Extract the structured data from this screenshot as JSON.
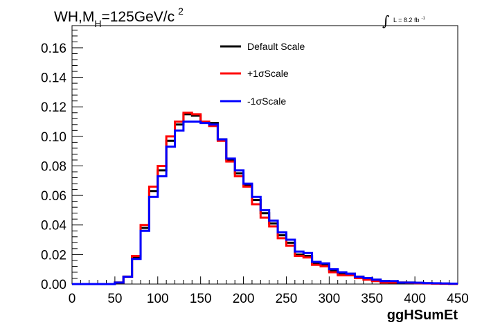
{
  "chart_data": {
    "type": "step",
    "title_main": "WH,M",
    "title_sub": "H",
    "title_rest": "=125GeV/c",
    "title_sup": "2",
    "lumi_integral_sign": "∫",
    "lumi_text": "L = 8.2 fb",
    "lumi_sup": "-1",
    "xlabel": "ggHSumEt",
    "ylabel": "",
    "xlim": [
      0,
      450
    ],
    "ylim": [
      0,
      0.175
    ],
    "xticks": [
      "0",
      "50",
      "100",
      "150",
      "200",
      "250",
      "300",
      "350",
      "400",
      "450"
    ],
    "yticks": [
      "0.00",
      "0.02",
      "0.04",
      "0.06",
      "0.08",
      "0.10",
      "0.12",
      "0.14",
      "0.16"
    ],
    "legend_position": "top-center",
    "bin_width": 10,
    "bin_edges": [
      0,
      450
    ],
    "series": [
      {
        "name": "Default Scale",
        "color": "#000000",
        "values": [
          0,
          0,
          0,
          0,
          0,
          0.001,
          0.005,
          0.018,
          0.038,
          0.063,
          0.077,
          0.097,
          0.108,
          0.115,
          0.114,
          0.11,
          0.109,
          0.098,
          0.084,
          0.075,
          0.067,
          0.057,
          0.048,
          0.041,
          0.033,
          0.028,
          0.02,
          0.019,
          0.014,
          0.013,
          0.009,
          0.007,
          0.007,
          0.005,
          0.004,
          0.003,
          0.002,
          0.001,
          0.001,
          0.001,
          0.0008,
          0.0005,
          0.0004,
          0.0003,
          0.0002
        ]
      },
      {
        "name": "+1σScale",
        "color": "#ff0000",
        "values": [
          0,
          0,
          0,
          0,
          0,
          0.001,
          0.005,
          0.019,
          0.04,
          0.066,
          0.08,
          0.1,
          0.11,
          0.116,
          0.115,
          0.11,
          0.107,
          0.097,
          0.083,
          0.073,
          0.066,
          0.054,
          0.045,
          0.039,
          0.031,
          0.026,
          0.019,
          0.018,
          0.013,
          0.012,
          0.008,
          0.006,
          0.006,
          0.004,
          0.003,
          0.002,
          0.001,
          0.001,
          0.001,
          0.0008,
          0.0006,
          0.0004,
          0.0003,
          0.0002,
          0.0001
        ]
      },
      {
        "name": "-1σScale",
        "color": "#0000ff",
        "values": [
          0,
          0,
          0,
          0,
          0,
          0.001,
          0.005,
          0.017,
          0.036,
          0.059,
          0.073,
          0.093,
          0.104,
          0.11,
          0.11,
          0.109,
          0.108,
          0.098,
          0.085,
          0.077,
          0.068,
          0.059,
          0.05,
          0.043,
          0.035,
          0.03,
          0.022,
          0.021,
          0.015,
          0.014,
          0.01,
          0.008,
          0.007,
          0.005,
          0.004,
          0.003,
          0.002,
          0.002,
          0.001,
          0.001,
          0.0009,
          0.0006,
          0.0005,
          0.0004,
          0.0003
        ]
      }
    ]
  }
}
